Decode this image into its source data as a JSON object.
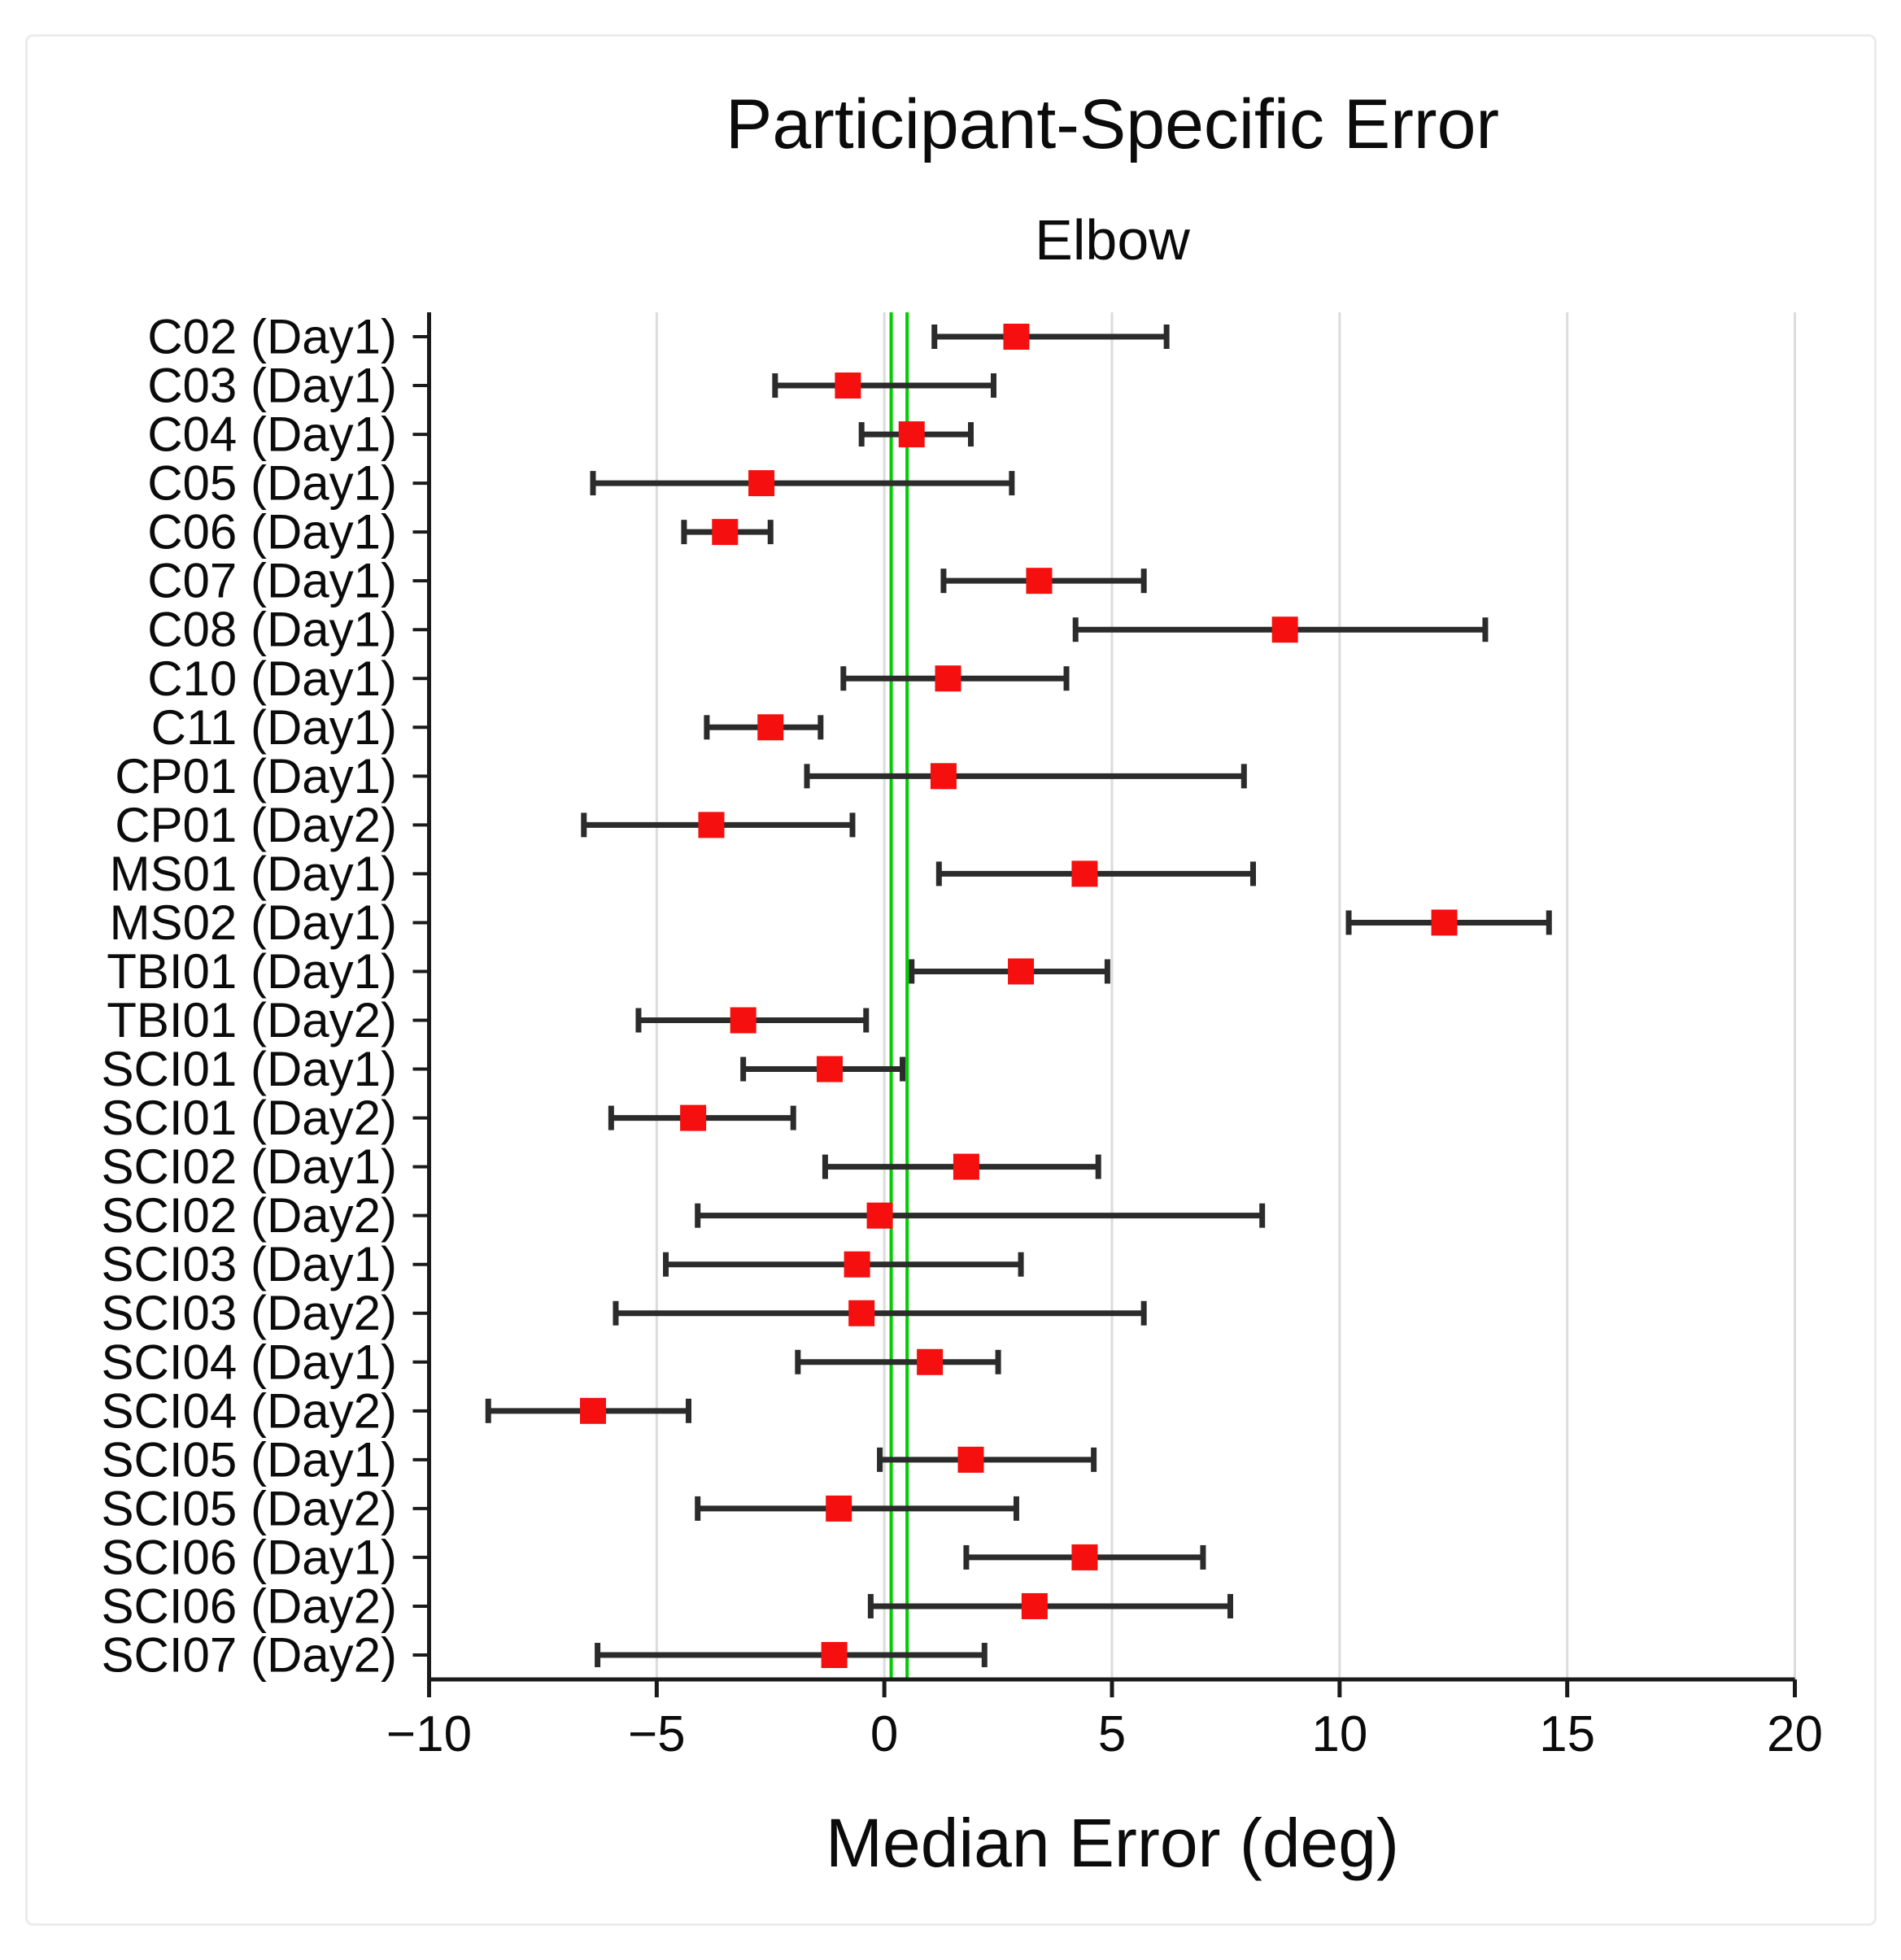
{
  "chart_data": {
    "type": "scatter",
    "subtype": "horizontal-errorbar-dot-plot",
    "title": "Participant-Specific Error",
    "subtitle": "Elbow",
    "xlabel": "Median Error (deg)",
    "ylabel": "",
    "xlim": [
      -10,
      20
    ],
    "xticks": [
      -10,
      -5,
      0,
      5,
      10,
      15,
      20
    ],
    "xtick_labels": [
      "−10",
      "−5",
      "0",
      "5",
      "10",
      "15",
      "20"
    ],
    "grid": "vertical",
    "grid_color": "#dcdcdc",
    "axis_color": "#1a1a1a",
    "marker_color": "#f50f0f",
    "errorbar_color": "#2b2b2b",
    "reference_lines": {
      "color": "#00cc00",
      "values": [
        0.15,
        0.5
      ]
    },
    "categories": [
      "C02 (Day1)",
      "C03 (Day1)",
      "C04 (Day1)",
      "C05 (Day1)",
      "C06 (Day1)",
      "C07 (Day1)",
      "C08 (Day1)",
      "C10 (Day1)",
      "C11 (Day1)",
      "CP01 (Day1)",
      "CP01 (Day2)",
      "MS01 (Day1)",
      "MS02 (Day1)",
      "TBI01 (Day1)",
      "TBI01 (Day2)",
      "SCI01 (Day1)",
      "SCI01 (Day2)",
      "SCI02 (Day1)",
      "SCI02 (Day2)",
      "SCI03 (Day1)",
      "SCI03 (Day2)",
      "SCI04 (Day1)",
      "SCI04 (Day2)",
      "SCI05 (Day1)",
      "SCI05 (Day2)",
      "SCI06 (Day1)",
      "SCI06 (Day2)",
      "SCI07 (Day2)"
    ],
    "series": [
      {
        "name": "Median Error (deg)",
        "values": [
          2.9,
          -0.8,
          0.6,
          -2.7,
          -3.5,
          3.4,
          8.8,
          1.4,
          -2.5,
          1.3,
          -3.8,
          4.4,
          12.3,
          3.0,
          -3.1,
          -1.2,
          -4.2,
          1.8,
          -0.1,
          -0.6,
          -0.5,
          1.0,
          -6.4,
          1.9,
          -1.0,
          4.4,
          3.3,
          -1.1
        ],
        "ci_low": [
          1.1,
          -2.4,
          -0.5,
          -6.4,
          -4.4,
          1.3,
          4.2,
          -0.9,
          -3.9,
          -1.7,
          -6.6,
          1.2,
          10.2,
          0.6,
          -5.4,
          -3.1,
          -6.0,
          -1.3,
          -4.1,
          -4.8,
          -5.9,
          -1.9,
          -8.7,
          -0.1,
          -4.1,
          1.8,
          -0.3,
          -6.3
        ],
        "ci_high": [
          6.2,
          2.4,
          1.9,
          2.8,
          -2.5,
          5.7,
          13.2,
          4.0,
          -1.4,
          7.9,
          -0.7,
          8.1,
          14.6,
          4.9,
          -0.4,
          0.4,
          -2.0,
          4.7,
          8.3,
          3.0,
          5.7,
          2.5,
          -4.3,
          4.6,
          2.9,
          7.0,
          7.6,
          2.2
        ]
      }
    ]
  }
}
